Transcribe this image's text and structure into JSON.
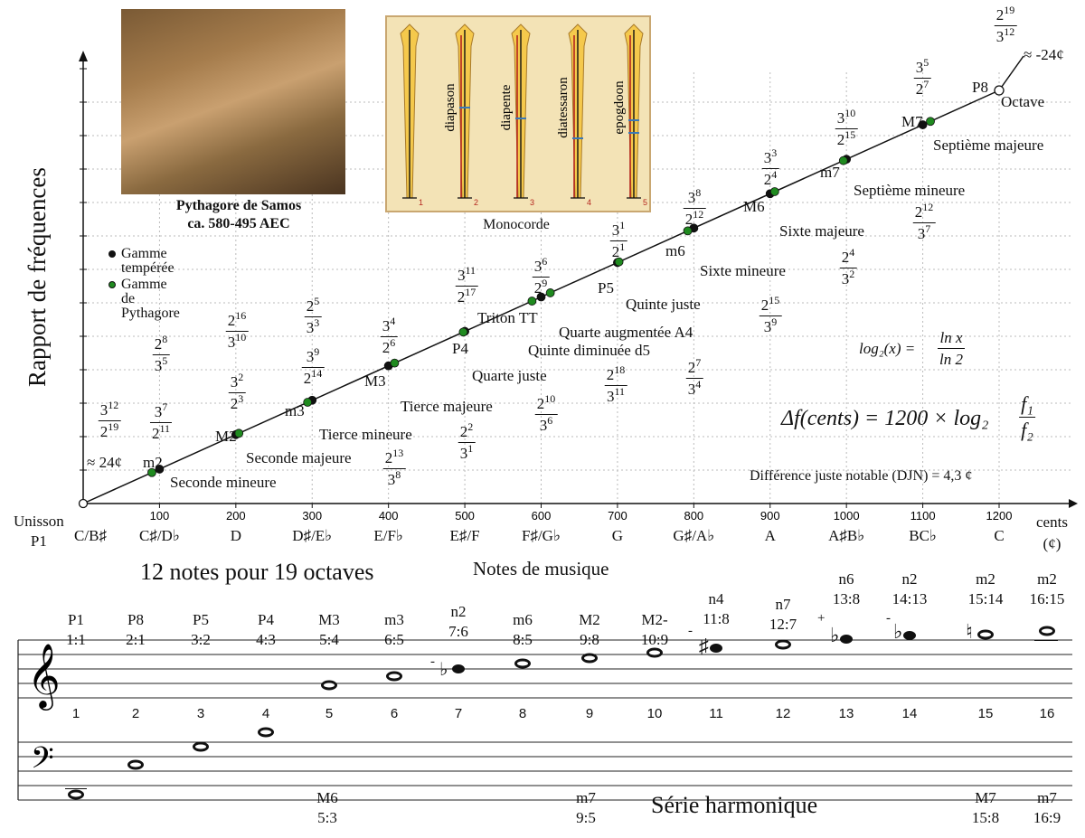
{
  "y_axis_label": "Rapport de fréquences",
  "portrait": {
    "name": "Pythagore de Samos",
    "dates": "ca. 580-495 AEC"
  },
  "legend": {
    "tempered": "Gamme tempérée",
    "pythagorean": "Gamme de Pythagore"
  },
  "monochord": {
    "title": "Monocorde",
    "strings": [
      "diapason",
      "diapente",
      "diatessaron",
      "epogdoon"
    ],
    "numbers": [
      "1",
      "2",
      "3",
      "4",
      "5"
    ]
  },
  "top_frac": {
    "num": "2",
    "num_exp": "19",
    "den": "3",
    "den_exp": "12",
    "approx": "≈ -24¢"
  },
  "unison_approx": "≈ 24¢",
  "p8_label": "P8",
  "octave_label": "Octave",
  "formula": {
    "log": "log₂(x) =",
    "ln_x": "ln x",
    "ln_2": "ln 2",
    "cents": "Δf(cents) = 1200 × log₂",
    "f1": "f₁",
    "f2": "f₂",
    "djn": "Différence juste notable (DJN) = 4,3 ¢"
  },
  "intervals": [
    {
      "abbr": "m2",
      "name": "Seconde mineure"
    },
    {
      "abbr": "M2",
      "name": "Seconde majeure"
    },
    {
      "abbr": "m3",
      "name": "Tierce mineure"
    },
    {
      "abbr": "M3",
      "name": "Tierce majeure"
    },
    {
      "abbr": "P4",
      "name": "Quarte juste"
    },
    {
      "abbr": "Triton TT",
      "name": "Quarte augmentée A4"
    },
    {
      "abbr": "",
      "name": "Quinte diminuée d5"
    },
    {
      "abbr": "P5",
      "name": "Quinte juste"
    },
    {
      "abbr": "m6",
      "name": "Sixte mineure"
    },
    {
      "abbr": "M6",
      "name": "Sixte majeure"
    },
    {
      "abbr": "m7",
      "name": "Septième mineure"
    },
    {
      "abbr": "M7",
      "name": "Septième majeure"
    }
  ],
  "x_axis": {
    "ticks": [
      "100",
      "200",
      "300",
      "400",
      "500",
      "600",
      "700",
      "800",
      "900",
      "1000",
      "1100",
      "1200"
    ],
    "unit": "cents",
    "unit2": "(¢)",
    "notes": [
      "C/B♯",
      "C♯/D♭",
      "D",
      "D♯/E♭",
      "E/F♭",
      "E♯/F",
      "F♯/G♭",
      "G",
      "G♯/A♭",
      "A",
      "A♯B♭",
      "BC♭",
      "C"
    ],
    "unison": "Unisson",
    "p1": "P1",
    "caption_left": "12 notes pour 19 octaves",
    "caption_mid": "Notes de musique"
  },
  "chart_data": {
    "type": "scatter",
    "title": "",
    "xlabel": "cents",
    "ylabel": "Rapport de fréquences",
    "xlim": [
      0,
      1200
    ],
    "series": [
      {
        "name": "Gamme tempérée",
        "x": [
          100,
          200,
          300,
          400,
          500,
          600,
          700,
          800,
          900,
          1000,
          1100
        ],
        "color": "#111111"
      },
      {
        "name": "Gamme de Pythagore",
        "x": [
          90,
          204,
          294,
          408,
          498,
          588,
          612,
          702,
          792,
          906,
          996,
          1110
        ],
        "color": "#1f8a1f"
      }
    ],
    "line": {
      "x": [
        0,
        1200
      ],
      "label_start": "Unisson",
      "label_end": "Octave"
    }
  },
  "harmonics": {
    "title": "Série harmonique",
    "numbers": [
      "1",
      "2",
      "3",
      "4",
      "5",
      "6",
      "7",
      "8",
      "9",
      "10",
      "11",
      "12",
      "13",
      "14",
      "15",
      "16"
    ],
    "labels": [
      {
        "a": "P1",
        "r": "1:1"
      },
      {
        "a": "P8",
        "r": "2:1"
      },
      {
        "a": "P5",
        "r": "3:2"
      },
      {
        "a": "P4",
        "r": "4:3"
      },
      {
        "a": "M3",
        "r": "5:4"
      },
      {
        "a": "m3",
        "r": "6:5"
      },
      {
        "a": "n2",
        "r": "7:6"
      },
      {
        "a": "m6",
        "r": "8:5"
      },
      {
        "a": "M2",
        "r": "9:8"
      },
      {
        "a": "M2-",
        "r": "10:9"
      },
      {
        "a": "n4",
        "r": "11:8"
      },
      {
        "a": "n7",
        "r": "12:7"
      },
      {
        "a": "n6",
        "r": "13:8"
      },
      {
        "a": "n2",
        "r": "14:13"
      },
      {
        "a": "m2",
        "r": "15:14"
      },
      {
        "a": "m2",
        "r": "16:15"
      }
    ],
    "bottom": [
      {
        "a": "M6",
        "r": "5:3"
      },
      {
        "a": "m7",
        "r": "9:5"
      },
      {
        "a": "M7",
        "r": "15:8"
      },
      {
        "a": "m7",
        "r": "16:9"
      }
    ],
    "signs": {
      "minus": "-",
      "plus": "+"
    }
  }
}
